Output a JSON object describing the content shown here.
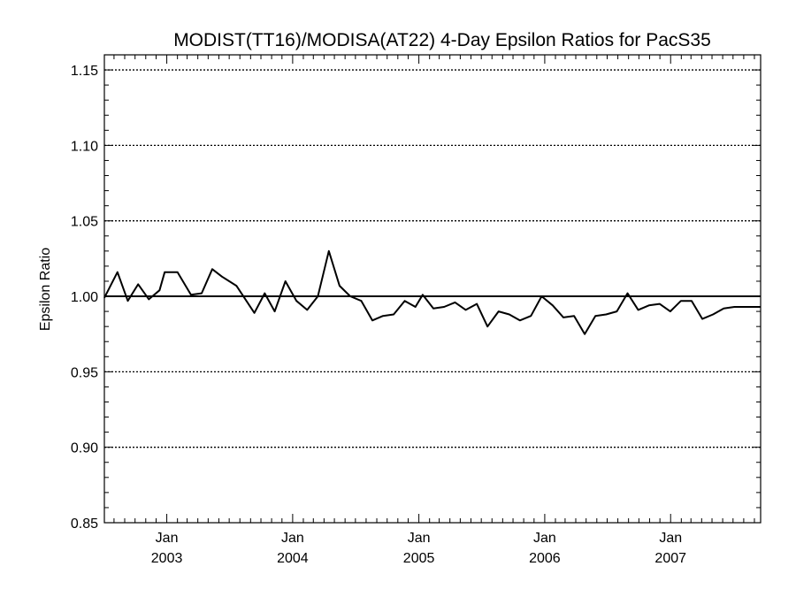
{
  "chart_data": {
    "type": "line",
    "title": "MODIST(TT16)/MODISA(AT22) 4-Day Epsilon Ratios for PacS35",
    "ylabel": "Epsilon Ratio",
    "xlabel": "",
    "ylim": [
      0.85,
      1.16
    ],
    "xlim": [
      "2002-07-04",
      "2007-09-19"
    ],
    "yticks": [
      0.85,
      0.9,
      0.95,
      1.0,
      1.05,
      1.1,
      1.15
    ],
    "ytick_labels": [
      "0.85",
      "0.90",
      "0.95",
      "1.00",
      "1.05",
      "1.10",
      "1.15"
    ],
    "xticks": [
      {
        "date": "2003-01-01",
        "month": "Jan",
        "year": "2003"
      },
      {
        "date": "2004-01-01",
        "month": "Jan",
        "year": "2004"
      },
      {
        "date": "2005-01-01",
        "month": "Jan",
        "year": "2005"
      },
      {
        "date": "2006-01-01",
        "month": "Jan",
        "year": "2006"
      },
      {
        "date": "2007-01-01",
        "month": "Jan",
        "year": "2007"
      }
    ],
    "reference_line": 1.0,
    "grid": "dotted horizontal at major y ticks",
    "series": [
      {
        "x": [
          "2002-07-04",
          "2002-08-11",
          "2002-09-10",
          "2002-10-10",
          "2002-11-10",
          "2002-12-11",
          "2002-12-26",
          "2003-02-01",
          "2003-03-12",
          "2003-04-12",
          "2003-05-13",
          "2003-06-10",
          "2003-07-22",
          "2003-09-12",
          "2003-10-12",
          "2003-11-10",
          "2003-12-11",
          "2004-01-12",
          "2004-02-12",
          "2004-03-14",
          "2004-04-15",
          "2004-05-16",
          "2004-06-16",
          "2004-07-18",
          "2004-08-19",
          "2004-09-19",
          "2004-10-20",
          "2004-11-21",
          "2004-12-22",
          "2005-01-12",
          "2005-02-12",
          "2005-03-15",
          "2005-04-16",
          "2005-05-17",
          "2005-06-18",
          "2005-07-19",
          "2005-08-20",
          "2005-09-20",
          "2005-10-21",
          "2005-11-22",
          "2005-12-23",
          "2006-01-24",
          "2006-02-24",
          "2006-03-27",
          "2006-04-27",
          "2006-05-28",
          "2006-06-28",
          "2006-07-29",
          "2006-08-29",
          "2006-09-29",
          "2006-10-30",
          "2006-11-30",
          "2006-12-31",
          "2007-01-31",
          "2007-03-03",
          "2007-04-03",
          "2007-05-04",
          "2007-06-04",
          "2007-07-05",
          "2007-08-05",
          "2007-09-05",
          "2007-09-19"
        ],
        "y": [
          0.999,
          1.016,
          0.997,
          1.008,
          0.998,
          1.004,
          1.016,
          1.016,
          1.001,
          1.002,
          1.018,
          1.013,
          1.007,
          0.989,
          1.002,
          0.99,
          1.01,
          0.997,
          0.991,
          1.0,
          1.03,
          1.007,
          1.0,
          0.997,
          0.984,
          0.987,
          0.988,
          0.997,
          0.993,
          1.001,
          0.992,
          0.993,
          0.996,
          0.991,
          0.995,
          0.98,
          0.99,
          0.988,
          0.984,
          0.987,
          1.0,
          0.994,
          0.986,
          0.987,
          0.975,
          0.987,
          0.988,
          0.99,
          1.002,
          0.991,
          0.994,
          0.995,
          0.99,
          0.997,
          0.997,
          0.985,
          0.988,
          0.992,
          0.993,
          0.993,
          0.993,
          0.993
        ]
      }
    ]
  }
}
